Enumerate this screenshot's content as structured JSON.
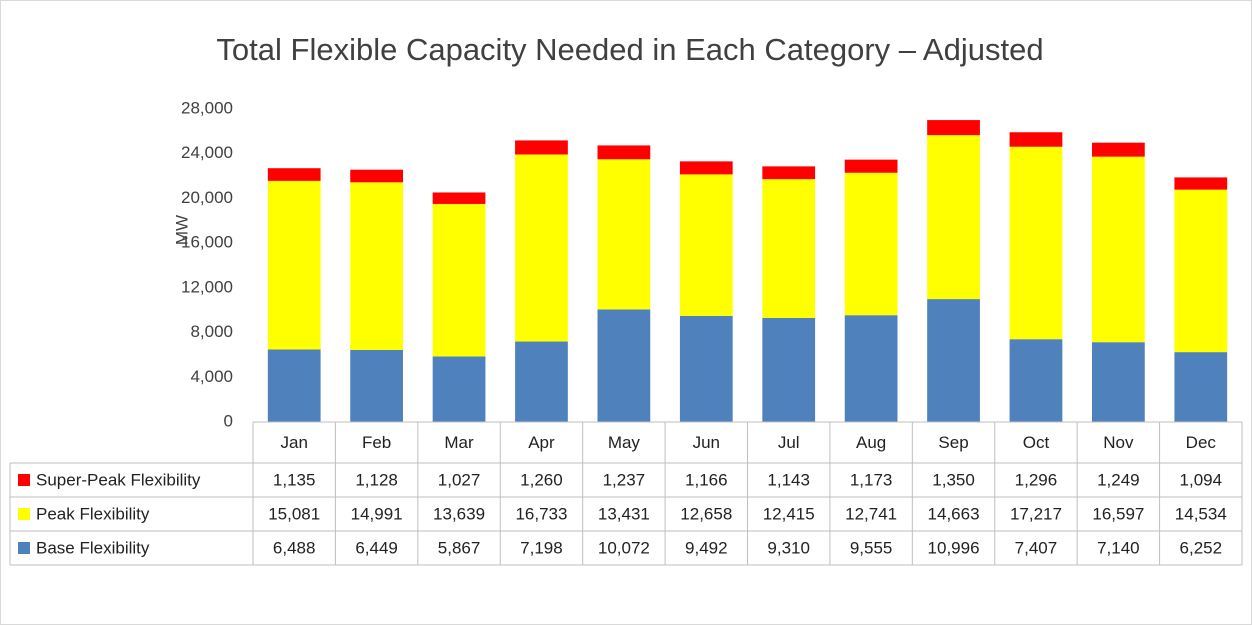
{
  "chart_data": {
    "type": "bar",
    "stacked": true,
    "title": "Total Flexible Capacity Needed in Each Category – Adjusted",
    "y_label": "MW",
    "categories": [
      "Jan",
      "Feb",
      "Mar",
      "Apr",
      "May",
      "Jun",
      "Jul",
      "Aug",
      "Sep",
      "Oct",
      "Nov",
      "Dec"
    ],
    "series": [
      {
        "name": "Base Flexibility",
        "color": "#4f81bd",
        "values": [
          6488,
          6449,
          5867,
          7198,
          10072,
          9492,
          9310,
          9555,
          10996,
          7407,
          7140,
          6252
        ],
        "value_labels": [
          "6,488",
          "6,449",
          "5,867",
          "7,198",
          "10,072",
          "9,492",
          "9,310",
          "9,555",
          "10,996",
          "7,407",
          "7,140",
          "6,252"
        ]
      },
      {
        "name": "Peak Flexibility",
        "color": "#ffff00",
        "values": [
          15081,
          14991,
          13639,
          16733,
          13431,
          12658,
          12415,
          12741,
          14663,
          17217,
          16597,
          14534
        ],
        "value_labels": [
          "15,081",
          "14,991",
          "13,639",
          "16,733",
          "13,431",
          "12,658",
          "12,415",
          "12,741",
          "14,663",
          "17,217",
          "16,597",
          "14,534"
        ]
      },
      {
        "name": "Super-Peak Flexibility",
        "color": "#ff0000",
        "values": [
          1135,
          1128,
          1027,
          1260,
          1237,
          1166,
          1143,
          1173,
          1350,
          1296,
          1249,
          1094
        ],
        "value_labels": [
          "1,135",
          "1,128",
          "1,027",
          "1,260",
          "1,237",
          "1,166",
          "1,143",
          "1,173",
          "1,350",
          "1,296",
          "1,249",
          "1,094"
        ]
      }
    ],
    "ylim": [
      0,
      28000
    ],
    "yticks": [
      0,
      {
        "value": 4000,
        "label": "4,000"
      },
      {
        "value": 8000,
        "label": "8,000"
      },
      {
        "value": 12000,
        "label": "12,000"
      },
      {
        "value": 16000,
        "label": "16,000"
      },
      {
        "value": 20000,
        "label": "20,000"
      },
      {
        "value": 24000,
        "label": "24,000"
      },
      {
        "value": 28000,
        "label": "28,000"
      }
    ]
  }
}
